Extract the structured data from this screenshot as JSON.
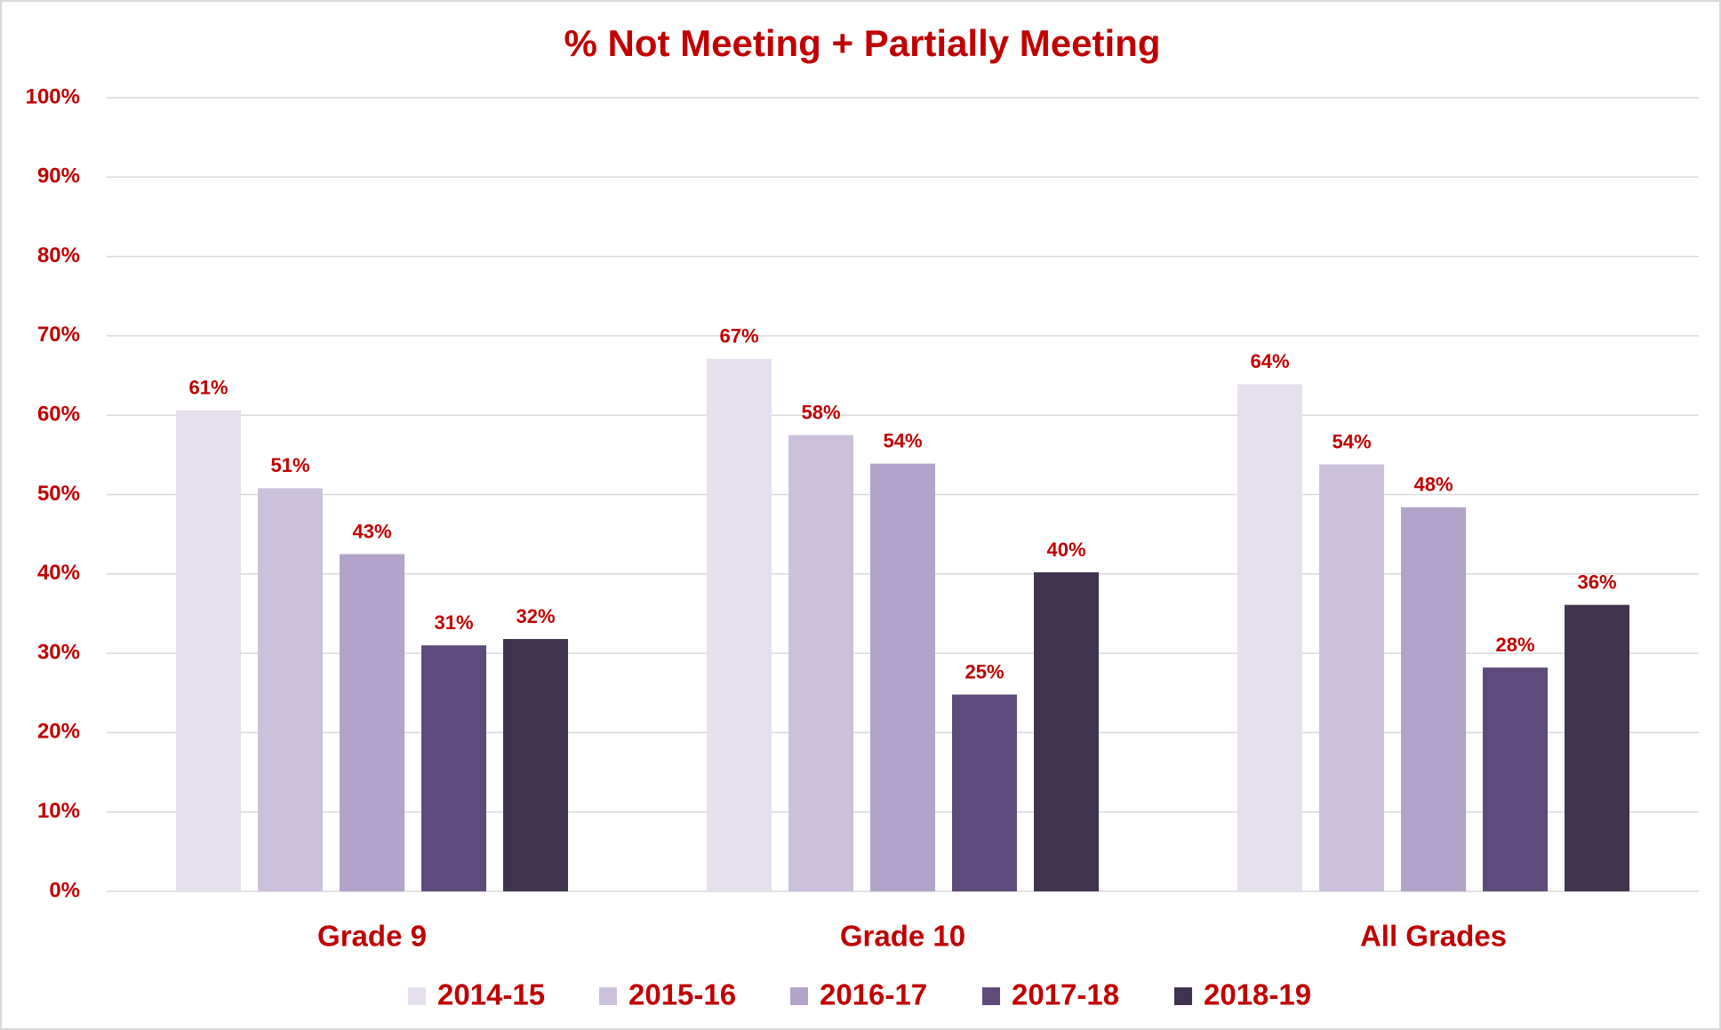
{
  "chart_data": {
    "type": "bar",
    "title": "% Not Meeting + Partially Meeting",
    "categories": [
      "Grade 9",
      "Grade 10",
      "All Grades"
    ],
    "series": [
      {
        "name": "2014-15",
        "color": "#e6e0ee",
        "values": [
          60.6,
          67.1,
          63.9
        ],
        "value_labels": [
          "61%",
          "67%",
          "64%"
        ]
      },
      {
        "name": "2015-16",
        "color": "#cbc1dc",
        "values": [
          50.8,
          57.5,
          53.8
        ],
        "value_labels": [
          "51%",
          "58%",
          "54%"
        ]
      },
      {
        "name": "2016-17",
        "color": "#b1a3c9",
        "values": [
          42.5,
          53.9,
          48.4
        ],
        "value_labels": [
          "43%",
          "54%",
          "48%"
        ]
      },
      {
        "name": "2017-18",
        "color": "#5e4b7b",
        "values": [
          31.0,
          24.8,
          28.2
        ],
        "value_labels": [
          "31%",
          "25%",
          "28%"
        ]
      },
      {
        "name": "2018-19",
        "color": "#3f3350",
        "values": [
          31.8,
          40.2,
          36.1
        ],
        "value_labels": [
          "32%",
          "40%",
          "36%"
        ]
      }
    ],
    "ylim": [
      0,
      100
    ],
    "yticks": [
      {
        "value": 0,
        "label": "0%"
      },
      {
        "value": 10,
        "label": "10%"
      },
      {
        "value": 20,
        "label": "20%"
      },
      {
        "value": 30,
        "label": "30%"
      },
      {
        "value": 40,
        "label": "40%"
      },
      {
        "value": 50,
        "label": "50%"
      },
      {
        "value": 60,
        "label": "60%"
      },
      {
        "value": 70,
        "label": "70%"
      },
      {
        "value": 80,
        "label": "80%"
      },
      {
        "value": 90,
        "label": "90%"
      },
      {
        "value": 100,
        "label": "100%"
      }
    ],
    "grid": true,
    "legend": "bottom"
  }
}
